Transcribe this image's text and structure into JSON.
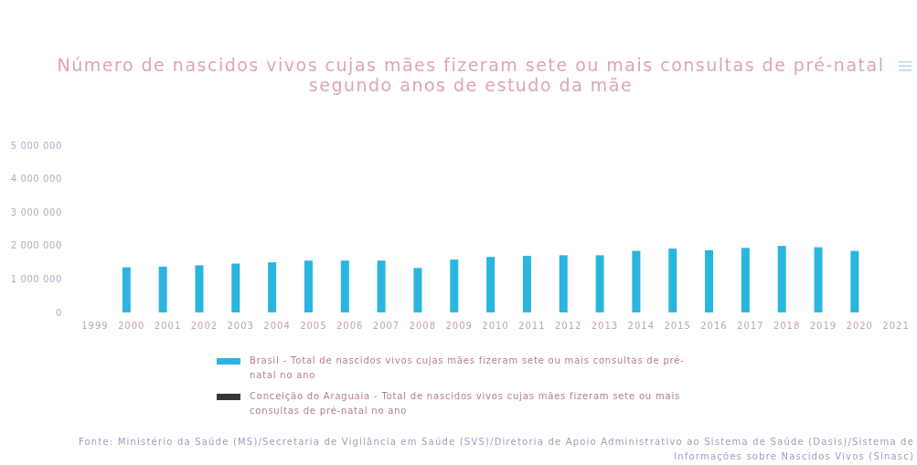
{
  "chart_data": {
    "type": "bar",
    "title": "Número de nascidos vivos cujas mães fizeram sete ou mais consultas de pré-natal segundo anos de estudo da mãe",
    "categories": [
      "1999",
      "2000",
      "2001",
      "2002",
      "2003",
      "2004",
      "2005",
      "2006",
      "2007",
      "2008",
      "2009",
      "2010",
      "2011",
      "2012",
      "2013",
      "2014",
      "2015",
      "2016",
      "2017",
      "2018",
      "2019",
      "2020",
      "2021"
    ],
    "series": [
      {
        "name": "Brasil - Total de nascidos vivos cujas mães fizeram sete ou mais consultas de pré-natal no ano",
        "color": "#2bb4e0",
        "values": [
          null,
          1350000,
          1370000,
          1410000,
          1460000,
          1500000,
          1550000,
          1550000,
          1550000,
          1330000,
          1580000,
          1660000,
          1690000,
          1710000,
          1710000,
          1840000,
          1910000,
          1860000,
          1930000,
          1990000,
          1950000,
          1840000,
          null
        ]
      },
      {
        "name": "Conceição do Araguaia - Total de nascidos vivos cujas mães fizeram sete ou mais consultas de pré-natal no ano",
        "color": "#38343e",
        "values": [
          null,
          null,
          null,
          null,
          null,
          null,
          null,
          null,
          null,
          null,
          null,
          null,
          null,
          null,
          null,
          null,
          null,
          null,
          null,
          null,
          null,
          null,
          null
        ]
      }
    ],
    "ylim": [
      0,
      5000000
    ],
    "yticks": [
      0,
      {
        "value": 1000000,
        "label": "1 000 000"
      },
      {
        "value": 2000000,
        "label": "2 000 000"
      },
      {
        "value": 3000000,
        "label": "3 000 000"
      },
      {
        "value": 4000000,
        "label": "4 000 000"
      },
      {
        "value": 5000000,
        "label": "5 000 000"
      }
    ],
    "grid": false,
    "legend": "bottom",
    "annotations": [
      "Fonte: Ministério da Saúde (MS)/Secretaria de Vigilância em Saúde (SVS)/Diretoria de Apoio Administrativo ao Sistema de Saúde (Dasis)/Sistema de Informações sobre Nascidos Vivos (Sinasc)"
    ]
  }
}
